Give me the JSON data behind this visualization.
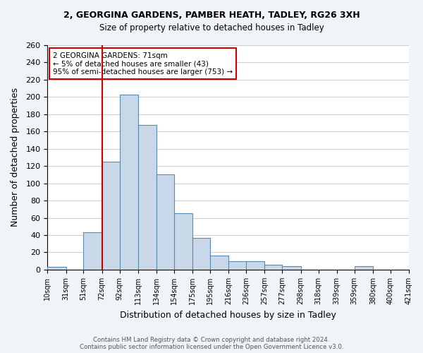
{
  "title": "2, GEORGINA GARDENS, PAMBER HEATH, TADLEY, RG26 3XH",
  "subtitle": "Size of property relative to detached houses in Tadley",
  "xlabel": "Distribution of detached houses by size in Tadley",
  "ylabel": "Number of detached properties",
  "bar_color": "#c8d8e8",
  "bar_edge_color": "#5a8ab0",
  "bin_edges": [
    10,
    31,
    51,
    72,
    92,
    113,
    134,
    154,
    175,
    195,
    216,
    236,
    257,
    277,
    298,
    318,
    339,
    359,
    380,
    400,
    421
  ],
  "bin_labels": [
    "10sqm",
    "31sqm",
    "51sqm",
    "72sqm",
    "92sqm",
    "113sqm",
    "134sqm",
    "154sqm",
    "175sqm",
    "195sqm",
    "216sqm",
    "236sqm",
    "257sqm",
    "277sqm",
    "298sqm",
    "318sqm",
    "339sqm",
    "359sqm",
    "380sqm",
    "400sqm",
    "421sqm"
  ],
  "counts": [
    3,
    0,
    43,
    125,
    203,
    168,
    110,
    65,
    37,
    16,
    10,
    10,
    6,
    4,
    0,
    0,
    0,
    4,
    0,
    0
  ],
  "vline_x": 72,
  "ylim": [
    0,
    260
  ],
  "yticks": [
    0,
    20,
    40,
    60,
    80,
    100,
    120,
    140,
    160,
    180,
    200,
    220,
    240,
    260
  ],
  "annotation_text": "2 GEORGINA GARDENS: 71sqm\n← 5% of detached houses are smaller (43)\n95% of semi-detached houses are larger (753) →",
  "annotation_box_color": "#ffffff",
  "annotation_box_edge_color": "#cc0000",
  "vline_color": "#cc0000",
  "footnote1": "Contains HM Land Registry data © Crown copyright and database right 2024.",
  "footnote2": "Contains public sector information licensed under the Open Government Licence v3.0.",
  "background_color": "#f0f4f8",
  "plot_bg_color": "#ffffff"
}
